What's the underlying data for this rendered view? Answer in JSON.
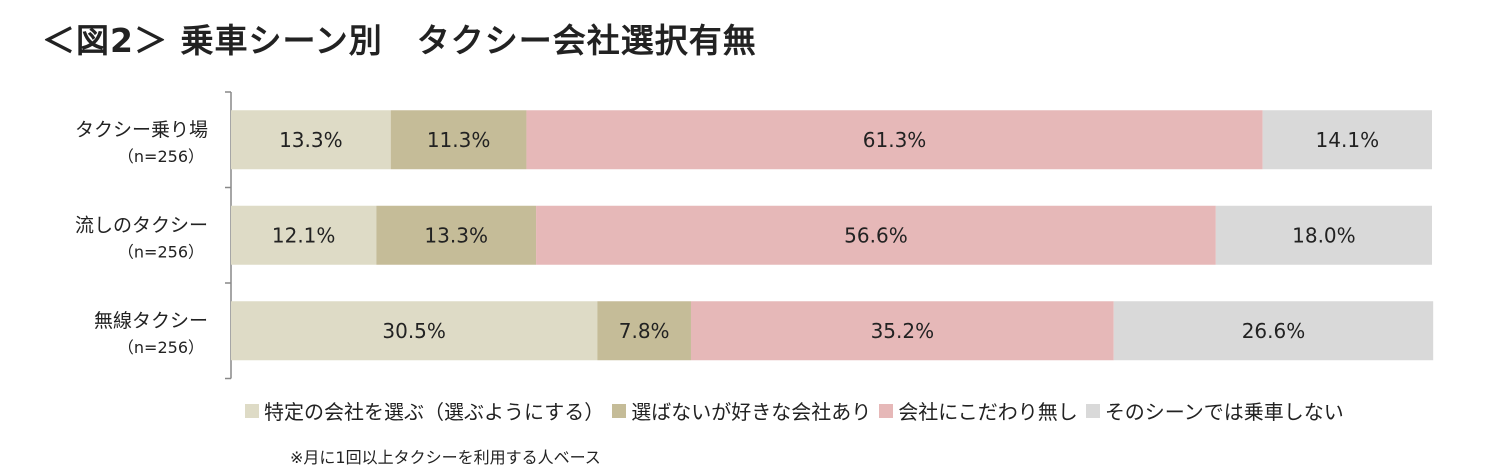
{
  "title": "＜図2＞ 乗車シーン別　タクシー会社選択有無",
  "note": "※月に1回以上タクシーを利用する人ベース",
  "colors": {
    "specific": "#dedbc6",
    "not_choose_but_like": "#c5bc98",
    "no_preference": "#e6b8b8",
    "not_ride": "#d9d9d9"
  },
  "chart_data": {
    "type": "bar",
    "orientation": "horizontal",
    "stacked": "100%",
    "categories": [
      {
        "label": "タクシー乗り場",
        "n": "（n=256）"
      },
      {
        "label": "流しのタクシー",
        "n": "（n=256）"
      },
      {
        "label": "無線タクシー",
        "n": "（n=256）"
      }
    ],
    "series": [
      {
        "name": "特定の会社を選ぶ（選ぶようにする）",
        "color_key": "specific",
        "values": [
          13.3,
          12.1,
          30.5
        ]
      },
      {
        "name": "選ばないが好きな会社あり",
        "color_key": "not_choose_but_like",
        "values": [
          11.3,
          13.3,
          7.8
        ]
      },
      {
        "name": "会社にこだわり無し",
        "color_key": "no_preference",
        "values": [
          61.3,
          56.6,
          35.2
        ]
      },
      {
        "name": "そのシーンでは乗車しない",
        "color_key": "not_ride",
        "values": [
          14.1,
          18.0,
          26.6
        ]
      }
    ],
    "unit": "%",
    "legend_position": "bottom",
    "grid": false
  }
}
